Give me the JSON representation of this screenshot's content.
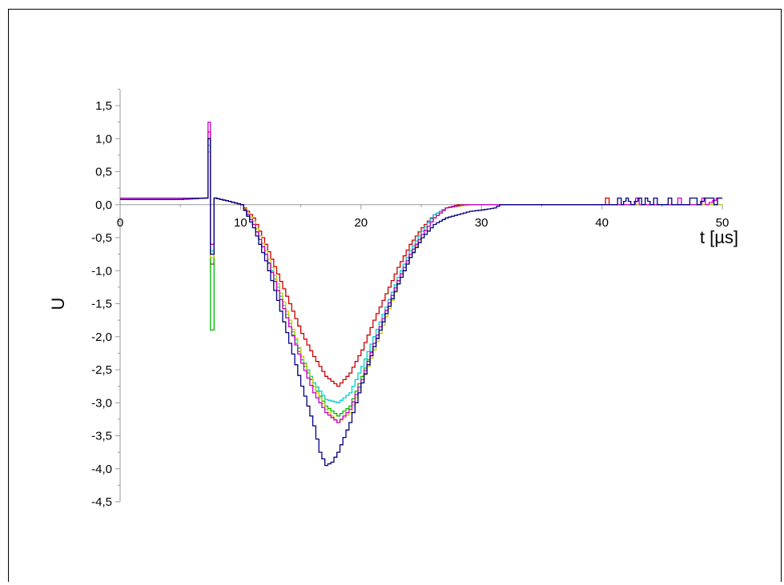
{
  "chart_data": {
    "type": "line",
    "xlabel": "t [µs]",
    "ylabel": "U",
    "xlim": [
      0,
      50
    ],
    "ylim": [
      -4.5,
      1.5
    ],
    "x_ticks": [
      "0",
      "10",
      "20",
      "30",
      "40",
      "50"
    ],
    "y_ticks": [
      "1,5",
      "1,0",
      "0,5",
      "0,0",
      "-0,5",
      "-1,0",
      "-1,5",
      "-2,0",
      "-2,5",
      "-3,0",
      "-3,5",
      "-4,0",
      "-4,5"
    ],
    "grid": false,
    "legend": "none",
    "series": [
      {
        "color": "#cc0000",
        "points": [
          [
            0,
            0.08
          ],
          [
            5,
            0.08
          ],
          [
            7,
            0.1
          ],
          [
            7.3,
            1.1
          ],
          [
            7.5,
            -0.9
          ],
          [
            7.8,
            0.1
          ],
          [
            9,
            0.05
          ],
          [
            10,
            0
          ],
          [
            11,
            -0.2
          ],
          [
            12,
            -0.6
          ],
          [
            13,
            -1.05
          ],
          [
            14,
            -1.5
          ],
          [
            15,
            -1.95
          ],
          [
            16,
            -2.3
          ],
          [
            17,
            -2.6
          ],
          [
            18,
            -2.75
          ],
          [
            19,
            -2.55
          ],
          [
            20,
            -2.2
          ],
          [
            21,
            -1.75
          ],
          [
            22,
            -1.35
          ],
          [
            23,
            -0.95
          ],
          [
            24,
            -0.6
          ],
          [
            25,
            -0.35
          ],
          [
            26,
            -0.15
          ],
          [
            27,
            -0.05
          ],
          [
            28,
            0
          ],
          [
            40,
            0
          ],
          [
            40.3,
            0.1
          ],
          [
            40.6,
            0
          ],
          [
            50,
            0
          ]
        ]
      },
      {
        "color": "#00bb00",
        "points": [
          [
            0,
            0.08
          ],
          [
            5,
            0.08
          ],
          [
            7,
            0.1
          ],
          [
            7.3,
            1.0
          ],
          [
            7.5,
            -1.9
          ],
          [
            7.8,
            0.1
          ],
          [
            9,
            0.05
          ],
          [
            10,
            0
          ],
          [
            11,
            -0.3
          ],
          [
            12,
            -0.75
          ],
          [
            13,
            -1.3
          ],
          [
            14,
            -1.85
          ],
          [
            15,
            -2.35
          ],
          [
            16,
            -2.75
          ],
          [
            17,
            -3.05
          ],
          [
            18,
            -3.2
          ],
          [
            19,
            -3.05
          ],
          [
            20,
            -2.6
          ],
          [
            21,
            -2.1
          ],
          [
            22,
            -1.6
          ],
          [
            23,
            -1.15
          ],
          [
            24,
            -0.75
          ],
          [
            25,
            -0.45
          ],
          [
            26,
            -0.2
          ],
          [
            27,
            -0.05
          ],
          [
            28.5,
            0
          ],
          [
            50,
            0
          ]
        ]
      },
      {
        "color": "#00cccc",
        "points": [
          [
            0,
            0.08
          ],
          [
            5,
            0.08
          ],
          [
            7,
            0.1
          ],
          [
            7.3,
            0.9
          ],
          [
            7.5,
            -0.7
          ],
          [
            7.8,
            0.1
          ],
          [
            9,
            0.05
          ],
          [
            10,
            0
          ],
          [
            11,
            -0.3
          ],
          [
            12,
            -0.75
          ],
          [
            13,
            -1.25
          ],
          [
            14,
            -1.8
          ],
          [
            15,
            -2.3
          ],
          [
            16,
            -2.7
          ],
          [
            17,
            -2.95
          ],
          [
            18,
            -3.0
          ],
          [
            19,
            -2.85
          ],
          [
            20,
            -2.45
          ],
          [
            21,
            -2.0
          ],
          [
            22,
            -1.55
          ],
          [
            23,
            -1.1
          ],
          [
            24,
            -0.7
          ],
          [
            25,
            -0.4
          ],
          [
            26,
            -0.15
          ],
          [
            27,
            -0.05
          ],
          [
            28.5,
            0
          ],
          [
            50,
            0
          ]
        ]
      },
      {
        "color": "#cccc00",
        "points": [
          [
            0,
            0.08
          ],
          [
            5,
            0.08
          ],
          [
            7,
            0.1
          ],
          [
            7.3,
            0.8
          ],
          [
            7.5,
            -0.8
          ],
          [
            7.8,
            0.1
          ],
          [
            9,
            0.05
          ],
          [
            10,
            0
          ],
          [
            11,
            -0.25
          ],
          [
            12,
            -0.7
          ],
          [
            13,
            -1.2
          ],
          [
            14,
            -1.75
          ],
          [
            15,
            -2.3
          ],
          [
            16,
            -2.75
          ],
          [
            17,
            -3.1
          ],
          [
            18,
            -3.3
          ],
          [
            19,
            -3.15
          ],
          [
            20,
            -2.7
          ],
          [
            21,
            -2.2
          ],
          [
            22,
            -1.7
          ],
          [
            23,
            -1.2
          ],
          [
            24,
            -0.8
          ],
          [
            25,
            -0.45
          ],
          [
            26,
            -0.2
          ],
          [
            27,
            -0.05
          ],
          [
            29,
            0
          ],
          [
            50,
            0
          ]
        ]
      },
      {
        "color": "#cc00cc",
        "points": [
          [
            0,
            0.1
          ],
          [
            5,
            0.1
          ],
          [
            7,
            0.1
          ],
          [
            7.3,
            1.25
          ],
          [
            7.5,
            -0.6
          ],
          [
            7.8,
            0.1
          ],
          [
            9,
            0.05
          ],
          [
            10,
            0
          ],
          [
            11,
            -0.3
          ],
          [
            12,
            -0.75
          ],
          [
            13,
            -1.3
          ],
          [
            14,
            -1.85
          ],
          [
            15,
            -2.4
          ],
          [
            16,
            -2.85
          ],
          [
            17,
            -3.15
          ],
          [
            18,
            -3.3
          ],
          [
            19,
            -3.1
          ],
          [
            20,
            -2.65
          ],
          [
            21,
            -2.1
          ],
          [
            22,
            -1.6
          ],
          [
            23,
            -1.15
          ],
          [
            24,
            -0.75
          ],
          [
            25,
            -0.45
          ],
          [
            26,
            -0.2
          ],
          [
            27,
            -0.05
          ],
          [
            28.5,
            0
          ],
          [
            42.5,
            0
          ],
          [
            42.8,
            0.1
          ],
          [
            43.1,
            0
          ],
          [
            46,
            0
          ],
          [
            46.3,
            0.1
          ],
          [
            46.6,
            0
          ],
          [
            48,
            0
          ],
          [
            48.3,
            0.1
          ],
          [
            48.6,
            0
          ],
          [
            49.5,
            0.1
          ],
          [
            50,
            0.1
          ]
        ]
      },
      {
        "color": "#000080",
        "points": [
          [
            0,
            0.08
          ],
          [
            5,
            0.08
          ],
          [
            7,
            0.1
          ],
          [
            7.3,
            1.0
          ],
          [
            7.5,
            -0.75
          ],
          [
            7.8,
            0.1
          ],
          [
            9,
            0.05
          ],
          [
            10,
            0
          ],
          [
            11,
            -0.35
          ],
          [
            12,
            -0.85
          ],
          [
            13,
            -1.45
          ],
          [
            14,
            -2.1
          ],
          [
            15,
            -2.75
          ],
          [
            16,
            -3.35
          ],
          [
            16.5,
            -3.75
          ],
          [
            17,
            -3.95
          ],
          [
            17.5,
            -3.9
          ],
          [
            18,
            -3.75
          ],
          [
            19,
            -3.3
          ],
          [
            20,
            -2.7
          ],
          [
            21,
            -2.15
          ],
          [
            22,
            -1.65
          ],
          [
            23,
            -1.2
          ],
          [
            24,
            -0.8
          ],
          [
            25,
            -0.5
          ],
          [
            26,
            -0.3
          ],
          [
            27,
            -0.2
          ],
          [
            28,
            -0.15
          ],
          [
            29,
            -0.1
          ],
          [
            30,
            -0.08
          ],
          [
            31,
            -0.05
          ],
          [
            31.5,
            0
          ],
          [
            41,
            0
          ],
          [
            41.3,
            0.1
          ],
          [
            41.6,
            0
          ],
          [
            42,
            0.1
          ],
          [
            42.4,
            0
          ],
          [
            43,
            0.1
          ],
          [
            43.3,
            0
          ],
          [
            43.6,
            0.1
          ],
          [
            44,
            0
          ],
          [
            44.3,
            0.1
          ],
          [
            44.6,
            0
          ],
          [
            45.2,
            0
          ],
          [
            45.5,
            0.1
          ],
          [
            45.8,
            0
          ],
          [
            47,
            0
          ],
          [
            47.3,
            0.1
          ],
          [
            47.6,
            0.1
          ],
          [
            47.9,
            0
          ],
          [
            48.5,
            0.1
          ],
          [
            49,
            0.1
          ],
          [
            49.3,
            0
          ],
          [
            49.6,
            0.1
          ],
          [
            50,
            0.1
          ]
        ]
      }
    ]
  }
}
